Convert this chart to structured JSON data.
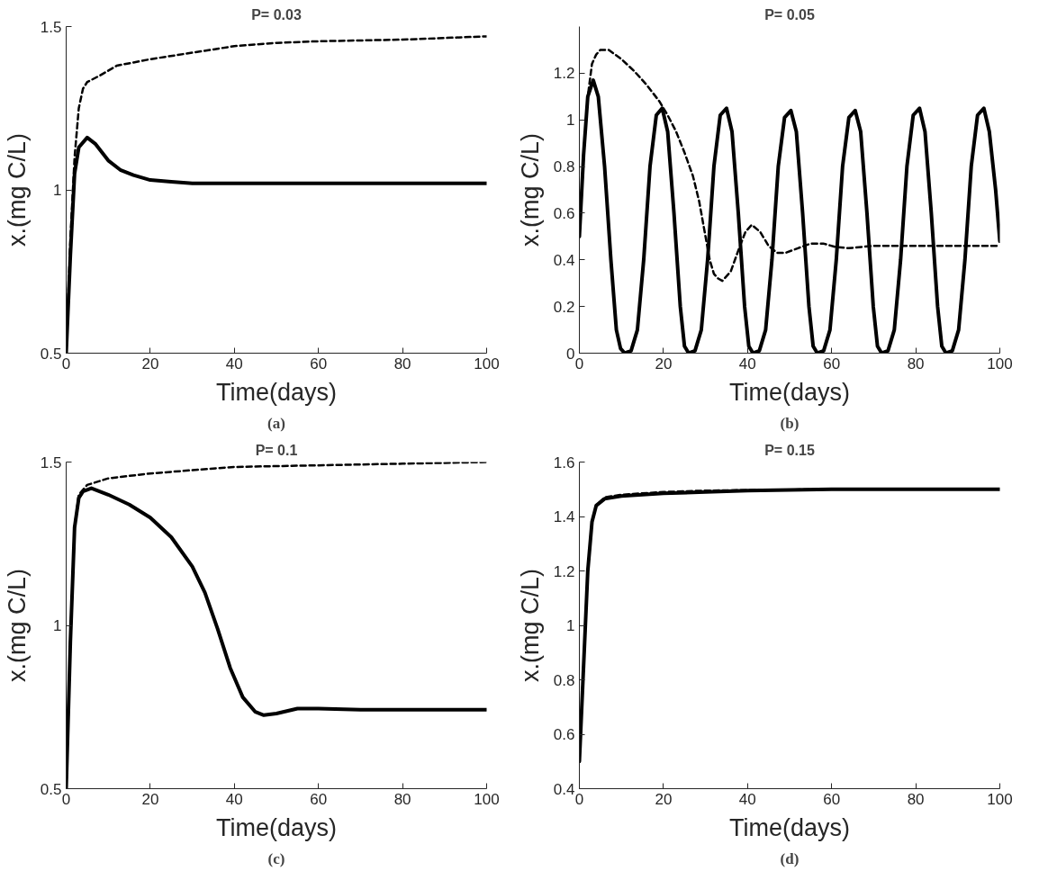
{
  "chart_data": [
    {
      "type": "line",
      "title": "P= 0.03",
      "xlabel": "Time(days)",
      "ylabel": "x.(mg C/L)",
      "annotations": [
        "(a)"
      ],
      "xlim": [
        0,
        100
      ],
      "xticks": [
        0,
        20,
        40,
        60,
        80,
        100
      ],
      "ylim": [
        0.5,
        1.5
      ],
      "yticks": [
        0.5,
        1,
        1.5
      ],
      "series": [
        {
          "color": "#000000",
          "line_style": "solid",
          "x": [
            0,
            1,
            2,
            3,
            5,
            7,
            10,
            13,
            16,
            20,
            25,
            30,
            40,
            100
          ],
          "values": [
            0.5,
            0.8,
            1.05,
            1.13,
            1.16,
            1.14,
            1.09,
            1.06,
            1.045,
            1.03,
            1.025,
            1.02,
            1.02,
            1.02
          ]
        },
        {
          "color": "#000000",
          "line_style": "dashed",
          "x": [
            0,
            1,
            2,
            3,
            4,
            5,
            8,
            12,
            20,
            30,
            40,
            50,
            60,
            80,
            100
          ],
          "values": [
            0.5,
            0.85,
            1.1,
            1.25,
            1.31,
            1.33,
            1.35,
            1.38,
            1.4,
            1.42,
            1.44,
            1.45,
            1.455,
            1.46,
            1.47
          ]
        }
      ]
    },
    {
      "type": "line",
      "title": "P= 0.05",
      "xlabel": "Time(days)",
      "ylabel": "x.(mg C/L)",
      "annotations": [
        "(b)"
      ],
      "xlim": [
        0,
        100
      ],
      "xticks": [
        0,
        20,
        40,
        60,
        80,
        100
      ],
      "ylim": [
        0,
        1.4
      ],
      "yticks": [
        0,
        0.2,
        0.4,
        0.6,
        0.8,
        1,
        1.2
      ],
      "series": [
        {
          "color": "#000000",
          "line_style": "solid",
          "x": [
            0,
            1,
            2,
            3.3,
            4.5,
            6,
            7.5,
            8.8,
            9.8,
            10.8,
            12.3,
            13.8,
            15.3,
            16.8,
            18.3,
            19.7,
            21,
            22.5,
            24,
            25,
            26,
            27.5,
            29,
            30.5,
            32,
            33.5,
            35,
            36.3,
            37.8,
            39.3,
            40.3,
            41.3,
            42.8,
            44.3,
            45.8,
            47.3,
            48.8,
            50.3,
            51.6,
            53.1,
            54.6,
            55.6,
            56.6,
            58.1,
            59.6,
            61.1,
            62.6,
            64.1,
            65.6,
            66.9,
            68.4,
            69.9,
            70.9,
            71.9,
            73.4,
            74.9,
            76.4,
            77.9,
            79.4,
            80.9,
            82.2,
            83.7,
            85.2,
            86.2,
            87.2,
            88.7,
            90.2,
            91.7,
            93.2,
            94.7,
            96.2,
            97.5,
            99,
            100
          ],
          "values": [
            0.5,
            0.85,
            1.1,
            1.17,
            1.1,
            0.8,
            0.4,
            0.1,
            0.02,
            0,
            0.01,
            0.1,
            0.4,
            0.8,
            1.02,
            1.05,
            0.95,
            0.6,
            0.2,
            0.03,
            0,
            0.01,
            0.1,
            0.4,
            0.8,
            1.02,
            1.05,
            0.95,
            0.6,
            0.2,
            0.03,
            0,
            0.01,
            0.1,
            0.4,
            0.8,
            1.01,
            1.04,
            0.95,
            0.6,
            0.2,
            0.03,
            0,
            0.01,
            0.1,
            0.4,
            0.8,
            1.01,
            1.04,
            0.95,
            0.6,
            0.2,
            0.03,
            0,
            0.01,
            0.1,
            0.4,
            0.8,
            1.02,
            1.05,
            0.95,
            0.6,
            0.2,
            0.03,
            0,
            0.01,
            0.1,
            0.4,
            0.8,
            1.02,
            1.05,
            0.95,
            0.7,
            0.48
          ]
        },
        {
          "color": "#000000",
          "line_style": "dashed",
          "x": [
            0,
            1,
            2,
            3,
            4,
            5,
            7,
            10,
            13,
            16,
            19,
            21,
            23,
            25,
            27,
            28.5,
            30,
            31,
            32,
            33,
            34,
            36,
            38,
            39.5,
            41,
            43,
            45,
            47,
            49,
            52,
            55,
            58,
            61,
            64,
            70,
            80,
            100
          ],
          "values": [
            0.5,
            0.85,
            1.1,
            1.24,
            1.28,
            1.3,
            1.3,
            1.26,
            1.21,
            1.15,
            1.08,
            1.02,
            0.95,
            0.86,
            0.76,
            0.65,
            0.5,
            0.4,
            0.34,
            0.32,
            0.31,
            0.35,
            0.45,
            0.52,
            0.55,
            0.52,
            0.46,
            0.43,
            0.43,
            0.45,
            0.47,
            0.47,
            0.455,
            0.45,
            0.46,
            0.46,
            0.46
          ]
        }
      ]
    },
    {
      "type": "line",
      "title": "P= 0.1",
      "xlabel": "Time(days)",
      "ylabel": "x.(mg C/L)",
      "annotations": [
        "(c)"
      ],
      "xlim": [
        0,
        100
      ],
      "xticks": [
        0,
        20,
        40,
        60,
        80,
        100
      ],
      "ylim": [
        0.5,
        1.5
      ],
      "yticks": [
        0.5,
        1,
        1.5
      ],
      "series": [
        {
          "color": "#000000",
          "line_style": "solid",
          "x": [
            0,
            1,
            2,
            3,
            4,
            6,
            10,
            15,
            20,
            25,
            30,
            33,
            36,
            39,
            42,
            45,
            47,
            50,
            55,
            60,
            70,
            100
          ],
          "values": [
            0.5,
            0.95,
            1.3,
            1.39,
            1.41,
            1.42,
            1.4,
            1.37,
            1.33,
            1.27,
            1.18,
            1.1,
            0.99,
            0.87,
            0.78,
            0.735,
            0.725,
            0.73,
            0.745,
            0.745,
            0.742,
            0.742
          ]
        },
        {
          "color": "#000000",
          "line_style": "dashed",
          "x": [
            0,
            1,
            2,
            3,
            5,
            10,
            20,
            30,
            40,
            60,
            80,
            100
          ],
          "values": [
            0.5,
            0.95,
            1.3,
            1.4,
            1.43,
            1.45,
            1.465,
            1.475,
            1.485,
            1.49,
            1.495,
            1.5
          ]
        }
      ]
    },
    {
      "type": "line",
      "title": "P= 0.15",
      "xlabel": "Time(days)",
      "ylabel": "x.(mg C/L)",
      "annotations": [
        "(d)"
      ],
      "xlim": [
        0,
        100
      ],
      "xticks": [
        0,
        20,
        40,
        60,
        80,
        100
      ],
      "ylim": [
        0.4,
        1.6
      ],
      "yticks": [
        0.4,
        0.6,
        0.8,
        1,
        1.2,
        1.4,
        1.6
      ],
      "series": [
        {
          "color": "#000000",
          "line_style": "dashed",
          "x": [
            0,
            1,
            2,
            3,
            4,
            6,
            10,
            20,
            30,
            40,
            60,
            100
          ],
          "values": [
            0.5,
            0.85,
            1.2,
            1.38,
            1.44,
            1.47,
            1.48,
            1.49,
            1.495,
            1.497,
            1.5,
            1.5
          ]
        },
        {
          "color": "#000000",
          "line_style": "solid",
          "x": [
            0,
            1,
            2,
            3,
            4,
            6,
            10,
            20,
            30,
            40,
            60,
            100
          ],
          "values": [
            0.5,
            0.85,
            1.2,
            1.38,
            1.44,
            1.465,
            1.475,
            1.485,
            1.49,
            1.495,
            1.5,
            1.5
          ]
        }
      ]
    }
  ]
}
